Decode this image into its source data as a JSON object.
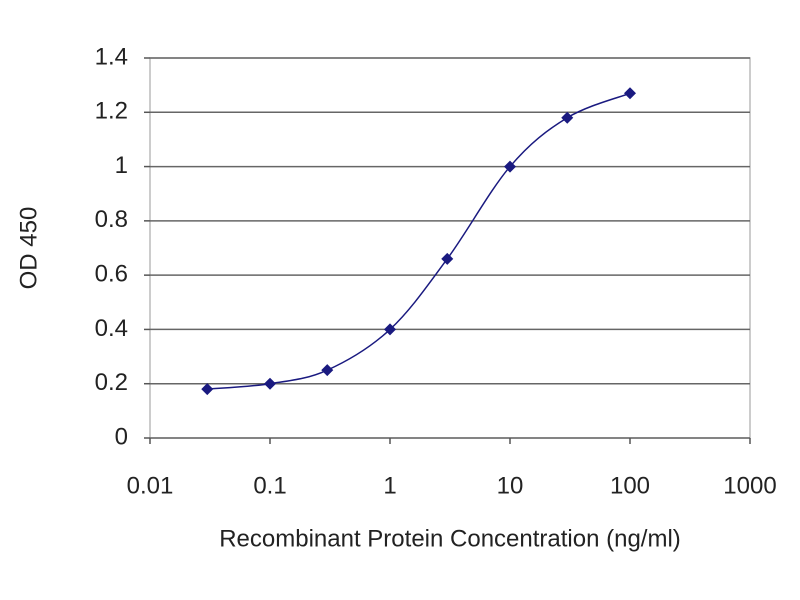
{
  "chart_data": {
    "type": "line",
    "x": [
      0.03,
      0.1,
      0.3,
      1,
      3,
      10,
      30,
      100
    ],
    "series": [
      {
        "color": "#1a1a80",
        "values": [
          0.18,
          0.2,
          0.25,
          0.4,
          0.66,
          1.0,
          1.18,
          1.27
        ]
      }
    ],
    "xlabel": "Recombinant Protein Concentration (ng/ml)",
    "ylabel": "OD 450",
    "xscale": "log",
    "xlim": [
      0.01,
      1000
    ],
    "xticks": [
      0.01,
      0.1,
      1,
      10,
      100,
      1000
    ],
    "ylim": [
      0,
      1.4
    ],
    "yticks": [
      0,
      0.2,
      0.4,
      0.6,
      0.8,
      1,
      1.2,
      1.4
    ],
    "grid": true
  }
}
